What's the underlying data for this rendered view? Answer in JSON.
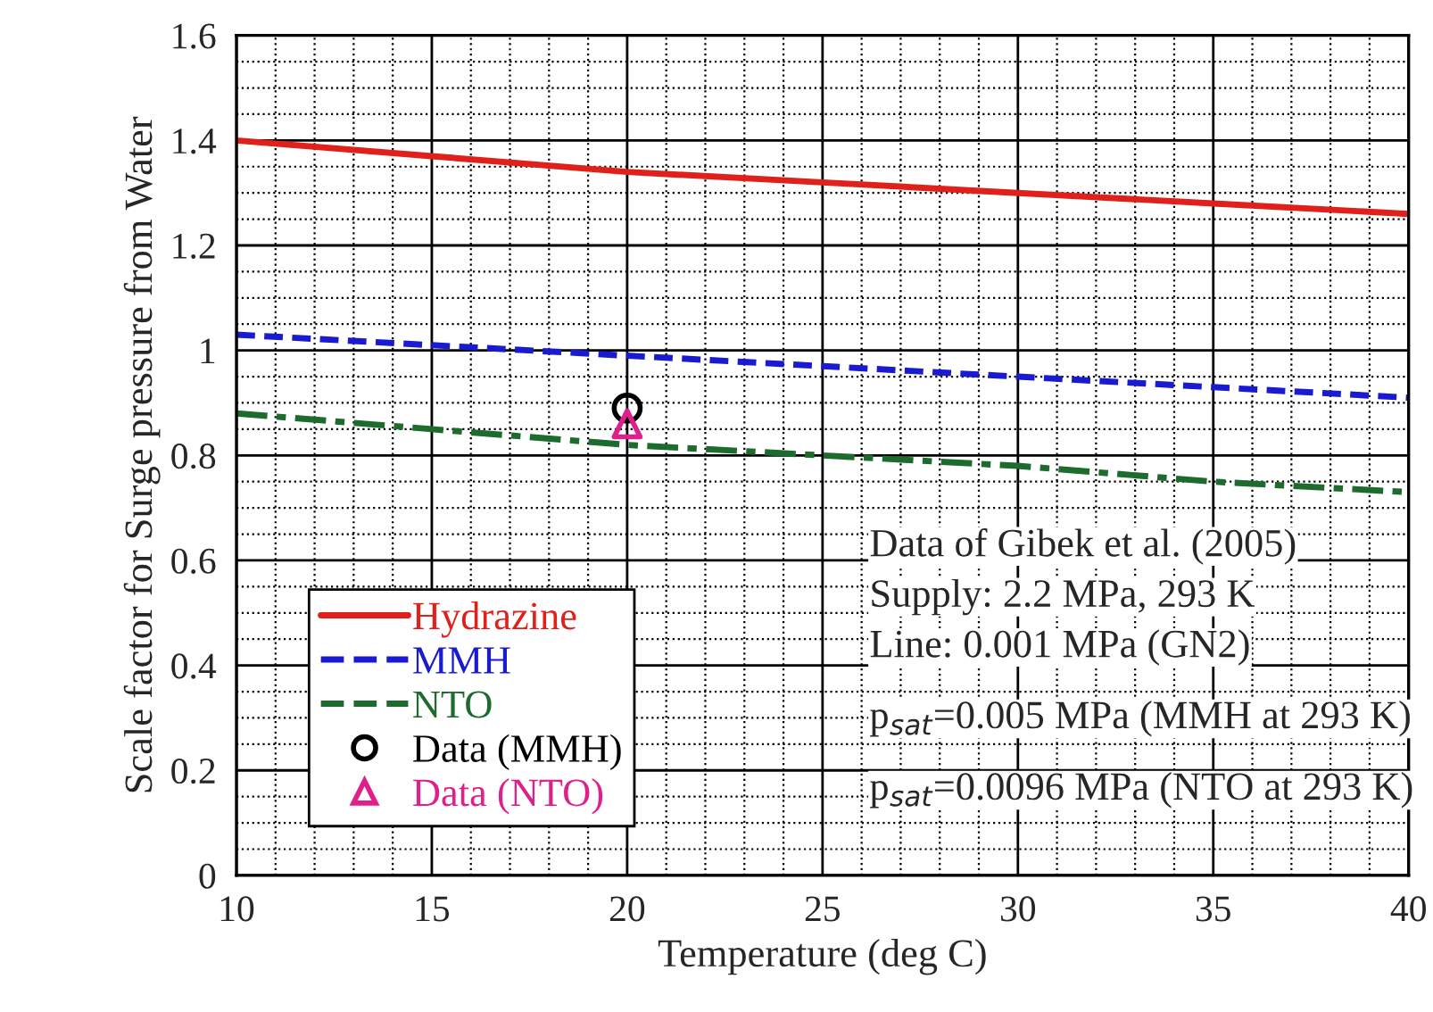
{
  "chart_data": {
    "type": "line",
    "xlabel": "Temperature (deg C)",
    "ylabel": "Scale factor for Surge pressure from Water",
    "xlim": [
      10,
      40
    ],
    "xticks": [
      10,
      15,
      20,
      25,
      30,
      35,
      40
    ],
    "ylim": [
      0,
      1.6
    ],
    "yticks": [
      0,
      0.2,
      0.4,
      0.6,
      0.8,
      1,
      1.2,
      1.4,
      1.6
    ],
    "grid": true,
    "legend": "bottom left",
    "series": [
      {
        "name": "Hydrazine",
        "color": "#e0201b",
        "line_style": "solid",
        "x": [
          10,
          15,
          20,
          25,
          30,
          35,
          40
        ],
        "values": [
          1.4,
          1.37,
          1.34,
          1.32,
          1.3,
          1.28,
          1.26
        ]
      },
      {
        "name": "MMH",
        "color": "#1a1ad0",
        "line_style": "dashed",
        "x": [
          10,
          15,
          20,
          25,
          30,
          35,
          40
        ],
        "values": [
          1.03,
          1.01,
          0.99,
          0.97,
          0.95,
          0.93,
          0.91
        ]
      },
      {
        "name": "NTO",
        "color": "#1e6b2e",
        "line_style": "dashdot",
        "x": [
          10,
          15,
          20,
          25,
          30,
          35,
          40
        ],
        "values": [
          0.88,
          0.85,
          0.82,
          0.8,
          0.78,
          0.75,
          0.73
        ]
      },
      {
        "name": "Data (MMH)",
        "type": "scatter",
        "color": "#000000",
        "marker": "circle",
        "x": [
          20
        ],
        "values": [
          0.89
        ]
      },
      {
        "name": "Data (NTO)",
        "type": "scatter",
        "color": "#e0208a",
        "marker": "triangle",
        "x": [
          20
        ],
        "values": [
          0.86
        ]
      }
    ],
    "annotations": [
      "Data of Gibek et al. (2005)",
      "Supply: 2.2 MPa, 293 K",
      "Line: 0.001 MPa (GN2)",
      "p$_{sat}$=0.005 MPa (MMH at 293 K)",
      "p$_{sat}$=0.0096 MPa (NTO at 293 K)"
    ]
  }
}
